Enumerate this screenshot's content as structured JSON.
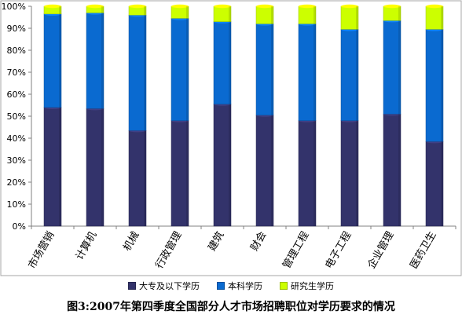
{
  "chart_data": {
    "type": "bar",
    "stacked": true,
    "caption": "图3:2007年第四季度全国部分人才市场招聘职位对学历要求的情况",
    "categories": [
      "市场营销",
      "计算机",
      "机械",
      "行政管理",
      "建筑",
      "财会",
      "管理工程",
      "电子工程",
      "企业管理",
      "医药卫生"
    ],
    "y_ticks": [
      "0%",
      "10%",
      "20%",
      "30%",
      "40%",
      "50%",
      "60%",
      "70%",
      "80%",
      "90%",
      "100%"
    ],
    "ylim": [
      0,
      100
    ],
    "grid": false,
    "legend_position": "bottom",
    "series": [
      {
        "name": "大专及以下学历",
        "color": "#33336b",
        "values": [
          54,
          53.5,
          43.5,
          48,
          55.5,
          50.5,
          48,
          48,
          51,
          38.5
        ]
      },
      {
        "name": "本科学历",
        "color": "#0a6ad0",
        "values": [
          42.5,
          43.5,
          52.5,
          46.5,
          37.5,
          41.5,
          44,
          41.5,
          42.5,
          51
        ]
      },
      {
        "name": "研究生学历",
        "color": "#ccff00",
        "values": [
          3.5,
          3,
          4,
          5.5,
          7,
          8,
          8,
          10.5,
          6.5,
          10.5
        ]
      }
    ]
  }
}
